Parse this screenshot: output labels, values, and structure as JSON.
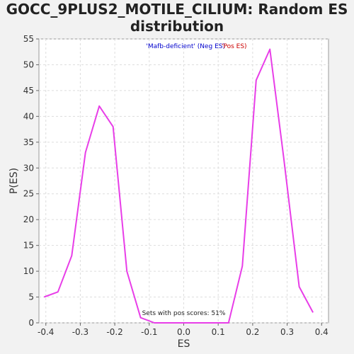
{
  "chart_data": {
    "type": "line",
    "title_line1": "GOCC_9PLUS2_MOTILE_CILIUM: Random ES",
    "title_line2": "distribution",
    "xlabel": "ES",
    "ylabel": "P(ES)",
    "xlim": [
      -0.42,
      0.42
    ],
    "ylim": [
      0,
      55
    ],
    "xticks": [
      -0.4,
      -0.3,
      -0.2,
      -0.1,
      0.0,
      0.1,
      0.2,
      0.3,
      0.4
    ],
    "xtick_labels": [
      "-0.4",
      "-0.3",
      "-0.2",
      "-0.1",
      "0.0",
      "0.1",
      "0.2",
      "0.3",
      "0.4"
    ],
    "yticks": [
      0,
      5,
      10,
      15,
      20,
      25,
      30,
      35,
      40,
      45,
      50,
      55
    ],
    "ytick_labels": [
      "0",
      "5",
      "10",
      "15",
      "20",
      "25",
      "30",
      "35",
      "40",
      "45",
      "50",
      "55"
    ],
    "grid": true,
    "legend": {
      "neg_label": "'Mafb-deficient' (Neg ES)",
      "pos_label": "'Pos ES)",
      "neg_color": "#0000cc",
      "pos_color": "#cc0000"
    },
    "annotation": "Sets with pos scores: 51%",
    "line_color": "#e83ee8",
    "series": [
      {
        "x": [
          -0.405,
          -0.365,
          -0.325,
          -0.285,
          -0.245,
          -0.205,
          -0.165,
          -0.125,
          -0.085,
          -0.045,
          -0.005,
          0.035,
          0.075,
          0.115,
          0.13,
          0.17,
          0.21,
          0.25,
          0.29,
          0.335,
          0.375
        ],
        "y": [
          5,
          6,
          13,
          33,
          42,
          38,
          10,
          1,
          0,
          0,
          0,
          0,
          0,
          0,
          0,
          11,
          47,
          53,
          32,
          7,
          2
        ]
      }
    ]
  }
}
